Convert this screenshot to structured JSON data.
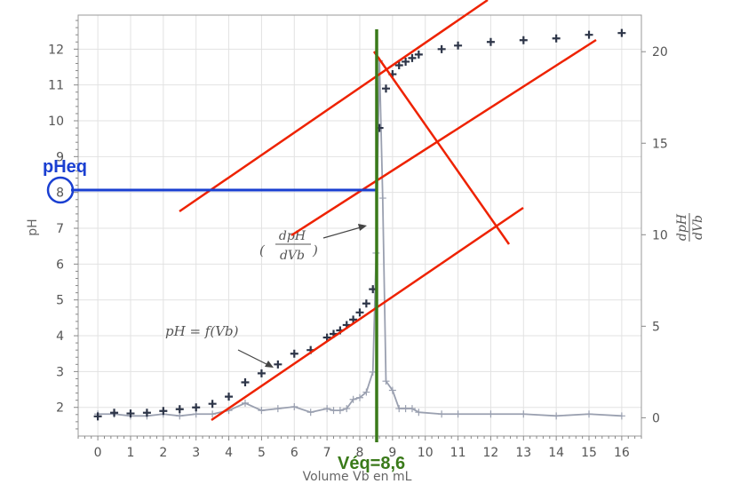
{
  "chart_data": {
    "type": "scatter",
    "xlabel": "Volume Vb en mL",
    "ylabel": "pH",
    "y2label": "dpH/dVb",
    "xlim": [
      -0.6,
      16.6
    ],
    "ylim": [
      1.2,
      12.95
    ],
    "y2lim": [
      -1.0,
      22.0
    ],
    "x_ticks": [
      0,
      1,
      2,
      3,
      4,
      5,
      6,
      7,
      8,
      9,
      10,
      11,
      12,
      13,
      14,
      15,
      16
    ],
    "y_ticks": [
      2,
      3,
      4,
      5,
      6,
      7,
      8,
      9,
      10,
      11,
      12
    ],
    "y2_ticks": [
      0,
      5,
      10,
      15,
      20
    ],
    "grid": true,
    "series": [
      {
        "name": "pH = f(Vb)",
        "axis": "left",
        "color": "#2d3548",
        "marker": "plus",
        "x": [
          0,
          0.5,
          1,
          1.5,
          2,
          2.5,
          3,
          3.5,
          4,
          4.5,
          5,
          5.5,
          6,
          6.5,
          7,
          7.2,
          7.4,
          7.6,
          7.8,
          8,
          8.2,
          8.4,
          8.6,
          8.8,
          9,
          9.2,
          9.4,
          9.6,
          9.8,
          10.5,
          11,
          12,
          13,
          14,
          15,
          16
        ],
        "y": [
          1.75,
          1.85,
          1.83,
          1.85,
          1.9,
          1.95,
          2.0,
          2.1,
          2.3,
          2.7,
          2.95,
          3.2,
          3.5,
          3.6,
          3.95,
          4.05,
          4.15,
          4.3,
          4.45,
          4.65,
          4.9,
          5.3,
          9.8,
          10.9,
          11.3,
          11.55,
          11.65,
          11.75,
          11.85,
          12.0,
          12.1,
          12.2,
          12.25,
          12.3,
          12.4,
          12.45
        ]
      },
      {
        "name": "dpH/dVb",
        "axis": "right",
        "color": "#9aa0b0",
        "marker": "plus",
        "x": [
          0,
          0.5,
          1,
          1.5,
          2,
          2.5,
          3,
          3.5,
          4,
          4.5,
          5,
          5.5,
          6,
          6.5,
          7,
          7.2,
          7.4,
          7.6,
          7.8,
          8,
          8.2,
          8.4,
          8.5,
          8.6,
          8.7,
          8.8,
          9,
          9.2,
          9.4,
          9.6,
          9.8,
          10.5,
          11,
          12,
          13,
          14,
          15,
          16
        ],
        "y": [
          0.2,
          0.2,
          0.1,
          0.1,
          0.2,
          0.1,
          0.2,
          0.2,
          0.4,
          0.8,
          0.4,
          0.5,
          0.6,
          0.3,
          0.5,
          0.4,
          0.4,
          0.5,
          1.0,
          1.1,
          1.4,
          2.5,
          9.0,
          19.5,
          12.0,
          2.0,
          1.5,
          0.5,
          0.5,
          0.5,
          0.3,
          0.2,
          0.2,
          0.2,
          0.2,
          0.1,
          0.2,
          0.1
        ]
      }
    ],
    "annotations": {
      "ph_curve_label": "pH = f(Vb)",
      "deriv_label_num": "dpH",
      "deriv_label_den": "dVb",
      "right_axis_num": "dpH",
      "right_axis_den": "dVb",
      "peq_label": "pHeq",
      "peq_value": 8,
      "veq_label": "Véq=8,6",
      "veq_value": 8.6
    },
    "overlay_colors": {
      "tangent_lines": "#ee2200",
      "peq_line": "#1a3fd1",
      "veq_line": "#3a7a1a"
    }
  }
}
